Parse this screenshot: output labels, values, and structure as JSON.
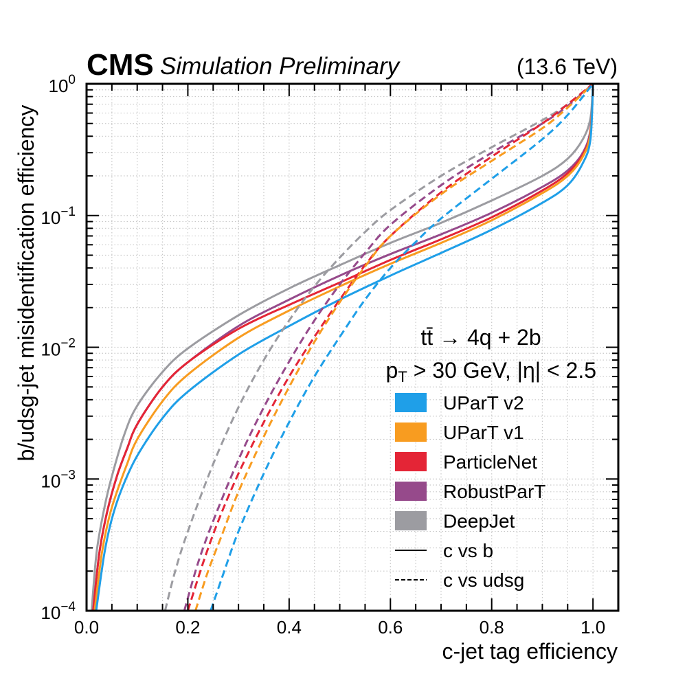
{
  "header": {
    "experiment": "CMS",
    "label": "Simulation Preliminary",
    "energy": "(13.6 TeV)"
  },
  "chart_data": {
    "type": "line",
    "title": "",
    "xlabel": "c-jet tag efficiency",
    "ylabel": "b/udsg-jet misidentification efficiency",
    "xlim": [
      0.0,
      1.05
    ],
    "ylim": [
      0.0001,
      1.0
    ],
    "yscale": "log",
    "grid": true,
    "xticks": [
      "0.0",
      "0.2",
      "0.4",
      "0.6",
      "0.8",
      "1.0"
    ],
    "xtick_values": [
      0.0,
      0.2,
      0.4,
      0.6,
      0.8,
      1.0
    ],
    "yticks": [
      {
        "base": "10",
        "exp": "0",
        "value": 1.0
      },
      {
        "base": "10",
        "exp": "−1",
        "value": 0.1
      },
      {
        "base": "10",
        "exp": "−2",
        "value": 0.01
      },
      {
        "base": "10",
        "exp": "−3",
        "value": 0.001
      },
      {
        "base": "10",
        "exp": "−4",
        "value": 0.0001
      }
    ],
    "annotation": {
      "process": "tt̄ → 4q + 2b",
      "cuts_prefix": "p",
      "cuts_sub": "T",
      "cuts_rest": " > 30 GeV, |η| < 2.5"
    },
    "legend_position": "bottom-right",
    "legend": [
      {
        "label": "UParT v2",
        "kind": "patch",
        "color": "#1f9fe8"
      },
      {
        "label": "UParT v1",
        "kind": "patch",
        "color": "#f89c20"
      },
      {
        "label": "ParticleNet",
        "kind": "patch",
        "color": "#e42536"
      },
      {
        "label": "RobustParT",
        "kind": "patch",
        "color": "#964a8b"
      },
      {
        "label": "DeepJet",
        "kind": "patch",
        "color": "#9c9ca1"
      },
      {
        "label": "c vs b",
        "kind": "solid"
      },
      {
        "label": "c vs udsg",
        "kind": "dashed"
      }
    ],
    "series": [
      {
        "name": "DeepJet c vs b",
        "tagger": "DeepJet",
        "style": "solid",
        "color": "#9c9ca1",
        "x": [
          0.01,
          0.02,
          0.035,
          0.05,
          0.075,
          0.1,
          0.15,
          0.2,
          0.3,
          0.4,
          0.5,
          0.6,
          0.7,
          0.8,
          0.9,
          0.95,
          0.98,
          0.995,
          1.0
        ],
        "y": [
          0.0001,
          0.00028,
          0.0006,
          0.00105,
          0.0022,
          0.0036,
          0.0065,
          0.0098,
          0.0175,
          0.028,
          0.042,
          0.062,
          0.088,
          0.13,
          0.2,
          0.27,
          0.38,
          0.55,
          1.0
        ]
      },
      {
        "name": "RobustParT c vs b",
        "tagger": "RobustParT",
        "style": "solid",
        "color": "#964a8b",
        "x": [
          0.013,
          0.025,
          0.04,
          0.06,
          0.08,
          0.1,
          0.15,
          0.2,
          0.3,
          0.4,
          0.5,
          0.6,
          0.7,
          0.8,
          0.9,
          0.95,
          0.98,
          0.995,
          1.0
        ],
        "y": [
          0.0001,
          0.00027,
          0.00055,
          0.00105,
          0.0017,
          0.0026,
          0.005,
          0.0077,
          0.0145,
          0.023,
          0.035,
          0.051,
          0.072,
          0.105,
          0.165,
          0.22,
          0.3,
          0.45,
          1.0
        ]
      },
      {
        "name": "ParticleNet c vs b",
        "tagger": "ParticleNet",
        "style": "solid",
        "color": "#e42536",
        "x": [
          0.013,
          0.025,
          0.04,
          0.06,
          0.08,
          0.1,
          0.15,
          0.2,
          0.3,
          0.4,
          0.5,
          0.6,
          0.7,
          0.8,
          0.9,
          0.95,
          0.98,
          0.995,
          1.0
        ],
        "y": [
          0.0001,
          0.00027,
          0.00055,
          0.00105,
          0.0017,
          0.0026,
          0.005,
          0.0077,
          0.0138,
          0.021,
          0.031,
          0.046,
          0.066,
          0.097,
          0.155,
          0.21,
          0.29,
          0.43,
          1.0
        ]
      },
      {
        "name": "UParT v1 c vs b",
        "tagger": "UParT v1",
        "style": "solid",
        "color": "#f89c20",
        "x": [
          0.016,
          0.03,
          0.045,
          0.06,
          0.08,
          0.1,
          0.15,
          0.2,
          0.3,
          0.4,
          0.5,
          0.6,
          0.7,
          0.8,
          0.9,
          0.95,
          0.98,
          0.995,
          1.0
        ],
        "y": [
          0.0001,
          0.00027,
          0.00052,
          0.0008,
          0.0013,
          0.002,
          0.0039,
          0.0062,
          0.0118,
          0.019,
          0.029,
          0.043,
          0.062,
          0.092,
          0.148,
          0.2,
          0.28,
          0.42,
          1.0
        ]
      },
      {
        "name": "UParT v2 c vs b",
        "tagger": "UParT v2",
        "style": "solid",
        "color": "#1f9fe8",
        "x": [
          0.019,
          0.035,
          0.05,
          0.07,
          0.1,
          0.15,
          0.2,
          0.3,
          0.4,
          0.5,
          0.6,
          0.7,
          0.8,
          0.9,
          0.95,
          0.98,
          0.995,
          1.0
        ],
        "y": [
          0.0001,
          0.00027,
          0.0005,
          0.00085,
          0.0015,
          0.0029,
          0.0046,
          0.0088,
          0.0145,
          0.023,
          0.035,
          0.052,
          0.078,
          0.125,
          0.17,
          0.25,
          0.38,
          1.0
        ]
      },
      {
        "name": "DeepJet c vs udsg",
        "tagger": "DeepJet",
        "style": "dashed",
        "color": "#9c9ca1",
        "x": [
          0.155,
          0.175,
          0.2,
          0.25,
          0.3,
          0.35,
          0.4,
          0.45,
          0.5,
          0.55,
          0.6,
          0.7,
          0.8,
          0.9,
          0.95,
          1.0
        ],
        "y": [
          0.0001,
          0.0002,
          0.0004,
          0.0013,
          0.0035,
          0.008,
          0.016,
          0.029,
          0.048,
          0.075,
          0.11,
          0.2,
          0.33,
          0.53,
          0.7,
          1.0
        ]
      },
      {
        "name": "RobustParT c vs udsg",
        "tagger": "RobustParT",
        "style": "dashed",
        "color": "#964a8b",
        "x": [
          0.193,
          0.22,
          0.25,
          0.3,
          0.35,
          0.4,
          0.45,
          0.5,
          0.55,
          0.6,
          0.7,
          0.8,
          0.9,
          0.95,
          1.0
        ],
        "y": [
          0.0001,
          0.00023,
          0.00048,
          0.0014,
          0.0035,
          0.0078,
          0.016,
          0.03,
          0.052,
          0.085,
          0.17,
          0.3,
          0.5,
          0.68,
          1.0
        ]
      },
      {
        "name": "ParticleNet c vs udsg",
        "tagger": "ParticleNet",
        "style": "dashed",
        "color": "#e42536",
        "x": [
          0.2,
          0.23,
          0.26,
          0.3,
          0.35,
          0.4,
          0.45,
          0.5,
          0.55,
          0.6,
          0.7,
          0.8,
          0.9,
          0.95,
          1.0
        ],
        "y": [
          0.0001,
          0.00023,
          0.00048,
          0.0011,
          0.0027,
          0.006,
          0.012,
          0.023,
          0.042,
          0.07,
          0.15,
          0.28,
          0.5,
          0.7,
          1.0
        ]
      },
      {
        "name": "UParT v1 c vs udsg",
        "tagger": "UParT v1",
        "style": "dashed",
        "color": "#f89c20",
        "x": [
          0.215,
          0.24,
          0.27,
          0.3,
          0.35,
          0.4,
          0.45,
          0.5,
          0.55,
          0.6,
          0.7,
          0.8,
          0.9,
          0.95,
          1.0
        ],
        "y": [
          0.0001,
          0.0002,
          0.0004,
          0.0008,
          0.0021,
          0.005,
          0.011,
          0.022,
          0.041,
          0.07,
          0.145,
          0.26,
          0.46,
          0.66,
          1.0
        ]
      },
      {
        "name": "UParT v2 c vs udsg",
        "tagger": "UParT v2",
        "style": "dashed",
        "color": "#1f9fe8",
        "x": [
          0.245,
          0.27,
          0.3,
          0.35,
          0.4,
          0.45,
          0.5,
          0.55,
          0.6,
          0.65,
          0.7,
          0.8,
          0.9,
          0.95,
          1.0
        ],
        "y": [
          0.0001,
          0.00019,
          0.0004,
          0.0011,
          0.0027,
          0.006,
          0.012,
          0.023,
          0.04,
          0.063,
          0.095,
          0.19,
          0.38,
          0.58,
          1.0
        ]
      }
    ]
  }
}
